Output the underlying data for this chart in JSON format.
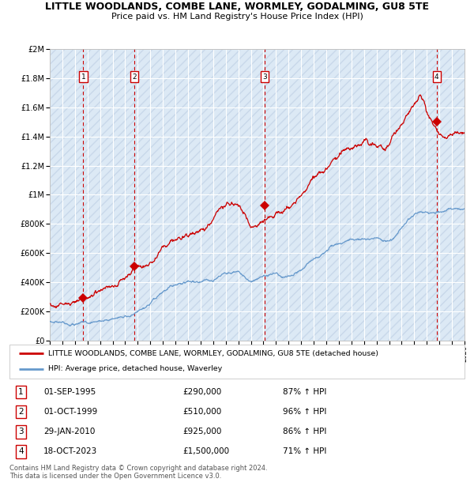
{
  "title": "LITTLE WOODLANDS, COMBE LANE, WORMLEY, GODALMING, GU8 5TE",
  "subtitle": "Price paid vs. HM Land Registry's House Price Index (HPI)",
  "background_color": "#dce9f5",
  "grid_color": "#ffffff",
  "xmin": 1993,
  "xmax": 2026,
  "ymin": 0,
  "ymax": 2000000,
  "yticks": [
    0,
    200000,
    400000,
    600000,
    800000,
    1000000,
    1200000,
    1400000,
    1600000,
    1800000,
    2000000
  ],
  "ytick_labels": [
    "£0",
    "£200K",
    "£400K",
    "£600K",
    "£800K",
    "£1M",
    "£1.2M",
    "£1.4M",
    "£1.6M",
    "£1.8M",
    "£2M"
  ],
  "sale_dates": [
    1995.67,
    1999.75,
    2010.08,
    2023.79
  ],
  "sale_prices": [
    290000,
    510000,
    925000,
    1500000
  ],
  "sale_labels": [
    "1",
    "2",
    "3",
    "4"
  ],
  "red_line_color": "#cc0000",
  "blue_line_color": "#6699cc",
  "marker_color": "#cc0000",
  "vline_color": "#cc0000",
  "legend_label_red": "LITTLE WOODLANDS, COMBE LANE, WORMLEY, GODALMING, GU8 5TE (detached house)",
  "legend_label_blue": "HPI: Average price, detached house, Waverley",
  "table_rows": [
    [
      "1",
      "01-SEP-1995",
      "£290,000",
      "87% ↑ HPI"
    ],
    [
      "2",
      "01-OCT-1999",
      "£510,000",
      "96% ↑ HPI"
    ],
    [
      "3",
      "29-JAN-2010",
      "£925,000",
      "86% ↑ HPI"
    ],
    [
      "4",
      "18-OCT-2023",
      "£1,500,000",
      "71% ↑ HPI"
    ]
  ],
  "footnote": "Contains HM Land Registry data © Crown copyright and database right 2024.\nThis data is licensed under the Open Government Licence v3.0."
}
